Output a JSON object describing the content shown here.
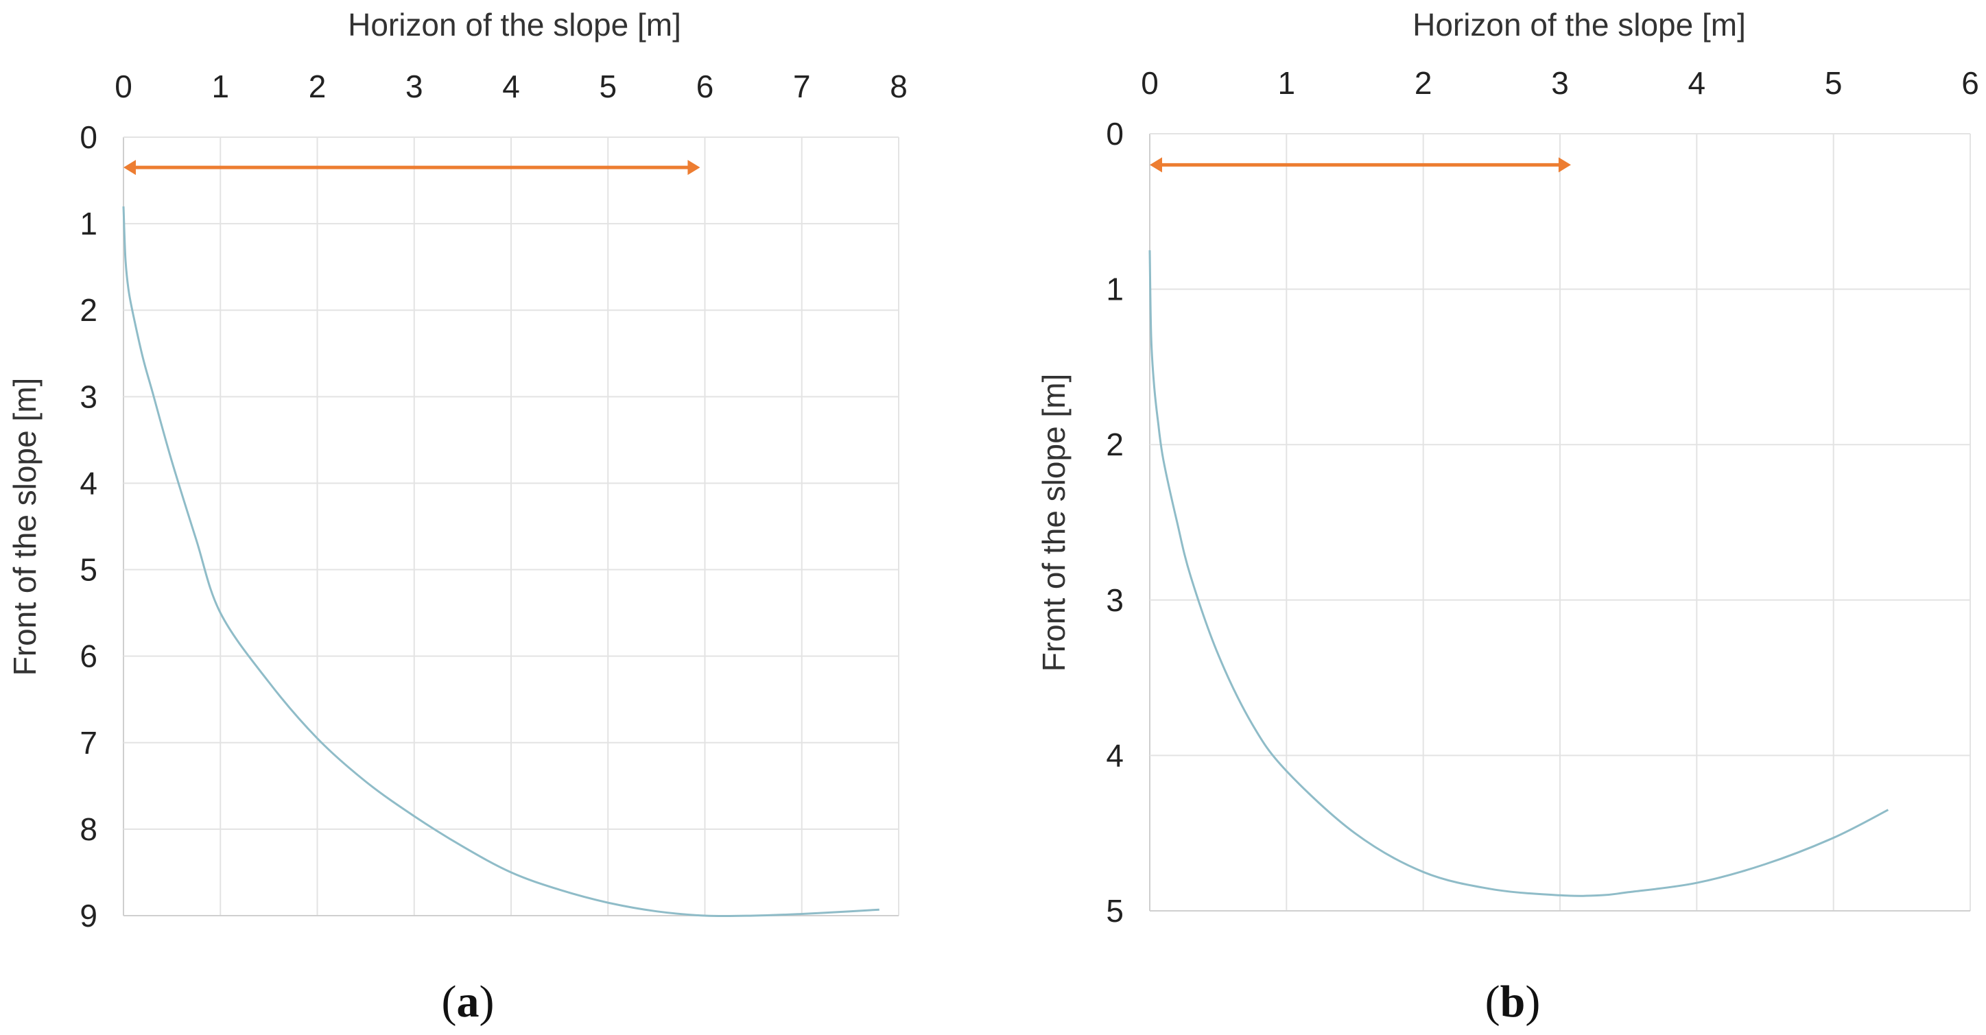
{
  "chart_data": [
    {
      "type": "line",
      "panel_label": "a",
      "xlabel": "Horizon  of the slope [m]",
      "ylabel": "Front of the slope [m]",
      "xlim": [
        0,
        8
      ],
      "ylim": [
        0,
        9
      ],
      "y_inverted": true,
      "x_axis_position": "top",
      "grid": true,
      "x_ticks": [
        "0",
        "1",
        "2",
        "3",
        "4",
        "5",
        "6",
        "7",
        "8"
      ],
      "y_ticks": [
        "0",
        "1",
        "2",
        "3",
        "4",
        "5",
        "6",
        "7",
        "8",
        "9"
      ],
      "series": [
        {
          "color": "#8fbcc8",
          "x": [
            0,
            0.02,
            0.05,
            0.1,
            0.2,
            0.3,
            0.5,
            0.75,
            1.0,
            1.5,
            2.0,
            2.5,
            3.0,
            3.5,
            4.0,
            4.5,
            5.0,
            5.5,
            6.0,
            6.5,
            7.0,
            7.5,
            7.8
          ],
          "y": [
            0.8,
            1.4,
            1.75,
            2.05,
            2.55,
            2.95,
            3.75,
            4.65,
            5.5,
            6.3,
            6.95,
            7.45,
            7.85,
            8.2,
            8.5,
            8.7,
            8.85,
            8.95,
            9.0,
            9.0,
            8.98,
            8.95,
            8.93
          ]
        }
      ],
      "annotations": [
        {
          "type": "double-arrow",
          "color": "#ed7d31",
          "x_from": 0,
          "x_to": 5.95,
          "y": 0.35
        }
      ]
    },
    {
      "type": "line",
      "panel_label": "b",
      "xlabel": "Horizon  of the slope [m]",
      "ylabel": "Front of the slope [m]",
      "xlim": [
        0,
        6
      ],
      "ylim": [
        0,
        5
      ],
      "y_inverted": true,
      "x_axis_position": "top",
      "grid": true,
      "x_ticks": [
        "0",
        "1",
        "2",
        "3",
        "4",
        "5",
        "6"
      ],
      "y_ticks": [
        "0",
        "1",
        "2",
        "3",
        "4",
        "5"
      ],
      "series": [
        {
          "color": "#8fbcc8",
          "x": [
            0,
            0.01,
            0.03,
            0.06,
            0.1,
            0.2,
            0.3,
            0.5,
            0.75,
            1.0,
            1.5,
            2.0,
            2.5,
            3.0,
            3.3,
            3.5,
            4.0,
            4.5,
            5.0,
            5.4
          ],
          "y": [
            0.75,
            1.3,
            1.6,
            1.85,
            2.1,
            2.5,
            2.85,
            3.35,
            3.8,
            4.1,
            4.5,
            4.75,
            4.86,
            4.9,
            4.9,
            4.88,
            4.82,
            4.7,
            4.53,
            4.35
          ]
        }
      ],
      "annotations": [
        {
          "type": "double-arrow",
          "color": "#ed7d31",
          "x_from": 0,
          "x_to": 3.08,
          "y": 0.2
        }
      ]
    }
  ]
}
